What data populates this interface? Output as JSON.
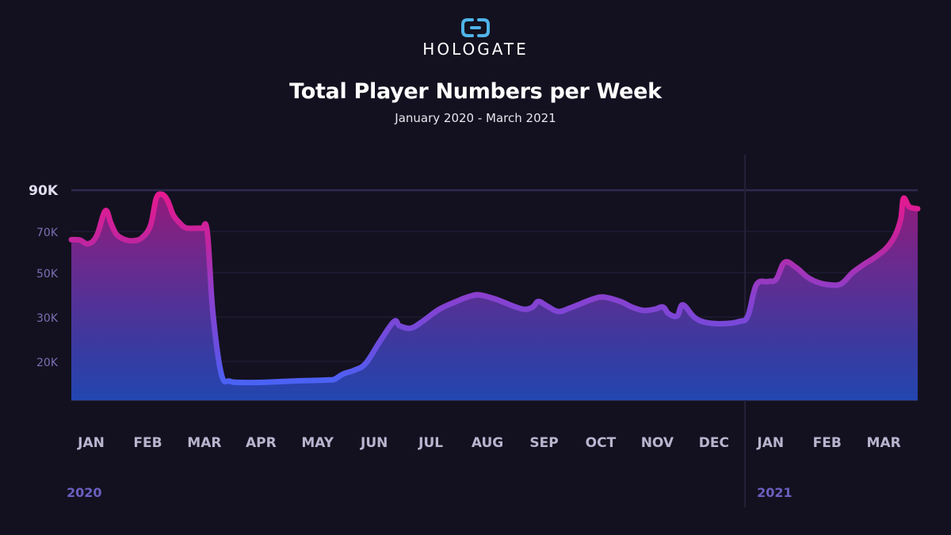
{
  "brand": {
    "name": "HOLOGATE",
    "accent": "#4fb3e8"
  },
  "colors": {
    "background": "#13111f",
    "line_high": "#e8188f",
    "line_low": "#3a6cff",
    "gridline": "#2a2545"
  },
  "chart_data": {
    "type": "area",
    "title": "Total Player Numbers per Week",
    "subtitle": "January 2020 - March 2021",
    "xlabel": "",
    "ylabel": "",
    "ylim": [
      0,
      90000
    ],
    "y_ticks": [
      {
        "value": 90000,
        "label": "90K"
      },
      {
        "value": 70000,
        "label": "70K"
      },
      {
        "value": 50000,
        "label": "50K"
      },
      {
        "value": 30000,
        "label": "30K"
      },
      {
        "value": 20000,
        "label": "20K"
      }
    ],
    "x_labels": [
      {
        "month_index": 0.35,
        "label": "JAN"
      },
      {
        "month_index": 1.35,
        "label": "FEB"
      },
      {
        "month_index": 2.35,
        "label": "MAR"
      },
      {
        "month_index": 3.35,
        "label": "APR"
      },
      {
        "month_index": 4.35,
        "label": "MAY"
      },
      {
        "month_index": 5.35,
        "label": "JUN"
      },
      {
        "month_index": 6.35,
        "label": "JUL"
      },
      {
        "month_index": 7.35,
        "label": "AUG"
      },
      {
        "month_index": 8.35,
        "label": "SEP"
      },
      {
        "month_index": 9.35,
        "label": "OCT"
      },
      {
        "month_index": 10.35,
        "label": "NOV"
      },
      {
        "month_index": 11.35,
        "label": "DEC"
      },
      {
        "month_index": 12.35,
        "label": "JAN"
      },
      {
        "month_index": 13.35,
        "label": "FEB"
      },
      {
        "month_index": 14.35,
        "label": "MAR"
      }
    ],
    "years": [
      {
        "label": "2020",
        "month_index": 0
      },
      {
        "label": "2021",
        "month_index": 12
      }
    ],
    "year_divider_month_index": 11.9,
    "grid": true,
    "legend": "none",
    "series": [
      {
        "x": [
          0.0,
          0.15,
          0.3,
          0.45,
          0.6,
          0.7,
          0.8,
          0.95,
          1.1,
          1.25,
          1.4,
          1.5,
          1.6,
          1.7,
          1.8,
          1.9,
          2.0,
          2.1,
          2.3,
          2.4,
          2.5,
          2.65,
          2.8,
          3.0,
          3.3,
          3.6,
          4.0,
          4.4,
          4.55,
          4.65,
          4.8,
          5.0,
          5.2,
          5.45,
          5.7,
          5.8,
          6.0,
          6.2,
          6.5,
          6.8,
          7.0,
          7.2,
          7.5,
          7.8,
          8.0,
          8.15,
          8.25,
          8.4,
          8.6,
          8.8,
          9.0,
          9.2,
          9.4,
          9.7,
          9.9,
          10.1,
          10.3,
          10.45,
          10.55,
          10.7,
          10.8,
          11.0,
          11.2,
          11.5,
          11.8,
          11.95,
          12.1,
          12.3,
          12.45,
          12.6,
          12.8,
          13.0,
          13.2,
          13.4,
          13.6,
          13.8,
          14.0,
          14.2,
          14.4,
          14.55,
          14.65,
          14.7,
          14.8,
          14.95
        ],
        "values": [
          66000,
          65800,
          64000,
          68000,
          80000,
          74000,
          68500,
          66000,
          65500,
          67000,
          73000,
          86000,
          88000,
          85000,
          78000,
          74500,
          72000,
          71500,
          71500,
          70000,
          32000,
          13500,
          9800,
          9200,
          9200,
          9500,
          10000,
          10300,
          10500,
          10800,
          13500,
          15500,
          19000,
          24500,
          29000,
          28000,
          27500,
          29000,
          33500,
          37000,
          39000,
          40000,
          38000,
          35000,
          33500,
          34500,
          37000,
          35000,
          32500,
          34000,
          36000,
          38000,
          39000,
          37000,
          34500,
          33000,
          33500,
          34500,
          31500,
          30500,
          35500,
          30000,
          28800,
          28500,
          29000,
          30500,
          44500,
          46000,
          47000,
          55000,
          52500,
          48000,
          45500,
          44500,
          45000,
          50000,
          54000,
          57500,
          62000,
          68000,
          76000,
          86000,
          82000,
          81000
        ]
      }
    ]
  }
}
